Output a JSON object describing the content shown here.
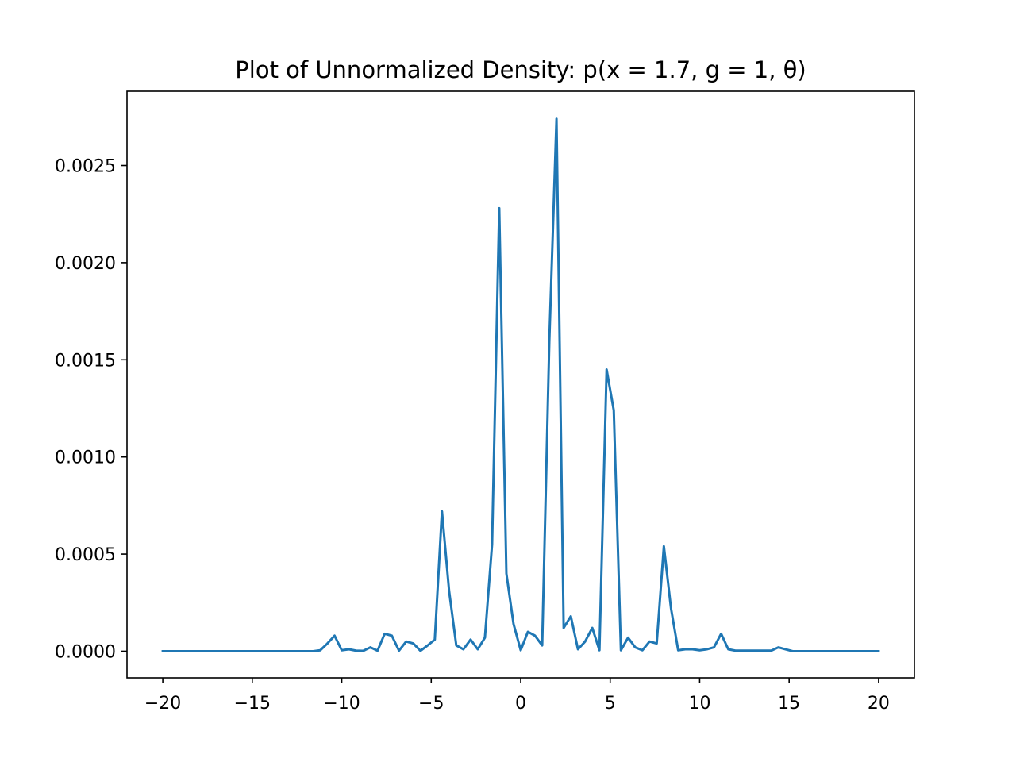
{
  "chart_data": {
    "type": "line",
    "title": "Plot of Unnormalized Density: p(x = 1.7, g = 1, θ)",
    "xlabel": "",
    "ylabel": "",
    "xlim": [
      -22,
      22
    ],
    "ylim": [
      -0.000137,
      0.002882
    ],
    "xticks": [
      -20,
      -15,
      -10,
      -5,
      0,
      5,
      10,
      15,
      20
    ],
    "xtick_labels": [
      "−20",
      "−15",
      "−10",
      "−5",
      "0",
      "5",
      "10",
      "15",
      "20"
    ],
    "yticks": [
      0.0,
      0.0005,
      0.001,
      0.0015,
      0.002,
      0.0025
    ],
    "ytick_labels": [
      "0.0000",
      "0.0005",
      "0.0010",
      "0.0015",
      "0.0020",
      "0.0025"
    ],
    "grid": false,
    "line_color": "#1f77b4",
    "series": [
      {
        "x": [
          -20,
          -15,
          -12,
          -11.6,
          -11.2,
          -10.8,
          -10.4,
          -10.0,
          -9.6,
          -9.2,
          -8.8,
          -8.4,
          -8.0,
          -7.6,
          -7.2,
          -6.8,
          -6.4,
          -6.0,
          -5.6,
          -5.2,
          -4.8,
          -4.4,
          -4.0,
          -3.6,
          -3.2,
          -2.8,
          -2.4,
          -2.0,
          -1.6,
          -1.2,
          -0.8,
          -0.4,
          0.0,
          0.4,
          0.8,
          1.2,
          1.6,
          2.0,
          2.4,
          2.8,
          3.2,
          3.6,
          4.0,
          4.4,
          4.8,
          5.2,
          5.6,
          6.0,
          6.4,
          6.8,
          7.2,
          7.6,
          8.0,
          8.4,
          8.8,
          9.2,
          9.6,
          10.0,
          10.4,
          10.8,
          11.2,
          11.6,
          12.0,
          12.4,
          12.8,
          13.2,
          13.6,
          14.0,
          14.4,
          14.8,
          15.2,
          20
        ],
        "y": [
          0.0,
          0.0,
          0.0,
          0.0,
          5e-06,
          4e-05,
          8e-05,
          5e-06,
          1e-05,
          3e-06,
          2e-06,
          2e-05,
          3e-06,
          9e-05,
          8e-05,
          3e-06,
          5e-05,
          4e-05,
          2e-06,
          3e-05,
          6e-05,
          0.00072,
          0.00031,
          3e-05,
          1e-05,
          6e-05,
          1e-05,
          7e-05,
          0.00055,
          0.00228,
          0.0004,
          0.00014,
          5e-06,
          0.0001,
          8e-05,
          3e-05,
          0.0016,
          0.00274,
          0.00012,
          0.00018,
          1e-05,
          5e-05,
          0.00012,
          5e-06,
          0.00145,
          0.00124,
          5e-06,
          7e-05,
          2e-05,
          5e-06,
          5e-05,
          4e-05,
          0.00054,
          0.00022,
          5e-06,
          1e-05,
          1e-05,
          5e-06,
          1e-05,
          2e-05,
          9e-05,
          1e-05,
          3e-06,
          3e-06,
          3e-06,
          3e-06,
          3e-06,
          3e-06,
          2e-05,
          1e-05,
          0.0,
          0.0
        ]
      }
    ]
  }
}
